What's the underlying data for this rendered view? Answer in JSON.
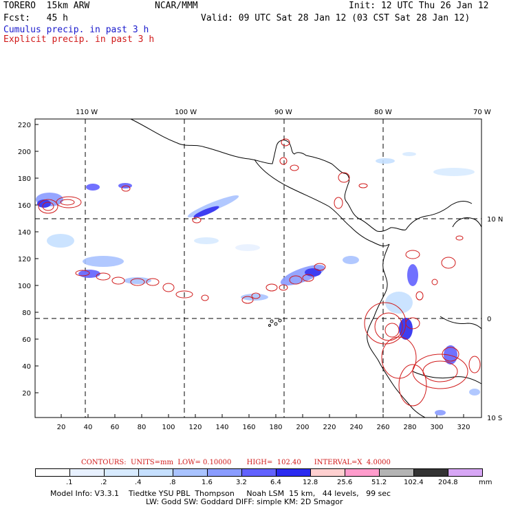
{
  "header": {
    "model": "TORERO  15km ARW",
    "org": "NCAR/MMM",
    "init": "Init: 12 UTC Thu 26 Jan 12",
    "fcst": "Fcst:   45 h",
    "valid": "Valid: 09 UTC Sat 28 Jan 12 (03 CST Sat 28 Jan 12)",
    "line_cumulus": "Cumulus precip. in past 3 h",
    "line_explicit": "Explicit precip. in past 3 h"
  },
  "map": {
    "lon_labels": [
      "110 W",
      "100 W",
      "90 W",
      "80 W",
      "70 W"
    ],
    "lat_labels": [
      "10 N",
      "0",
      "10 S"
    ],
    "y_ticks": [
      "220",
      "200",
      "180",
      "160",
      "140",
      "120",
      "100",
      "80",
      "60",
      "40",
      "20"
    ],
    "x_ticks": [
      "20",
      "40",
      "60",
      "80",
      "100",
      "120",
      "140",
      "160",
      "180",
      "200",
      "220",
      "240",
      "260",
      "280",
      "300",
      "320"
    ]
  },
  "contours": {
    "label": "CONTOURS:  UNITS=mm  LOW= 0.10000       HIGH=  102.40      INTERVAL=X  4.0000"
  },
  "colorbar": {
    "labels": [
      ".1",
      ".2",
      ".4",
      ".8",
      "1.6",
      "3.2",
      "6.4",
      "12.8",
      "25.6",
      "51.2",
      "102.4",
      "204.8"
    ],
    "unit": "mm",
    "colors": [
      "#ffffff",
      "#e8f1ff",
      "#d8ebff",
      "#c6e0ff",
      "#a9c3ff",
      "#8a9cff",
      "#6262ff",
      "#2a2af0",
      "#ffd0d0",
      "#ff9ccc",
      "#b4b4b4",
      "#333333",
      "#d7a6f5"
    ]
  },
  "model_info": {
    "line1": "Model Info: V3.3.1    Tiedtke YSU PBL  Thompson     Noah LSM  15 km,   44 levels,   99 sec",
    "line2": "LW: Godd SW: Goddard DIFF: simple KM: 2D Smagor"
  }
}
